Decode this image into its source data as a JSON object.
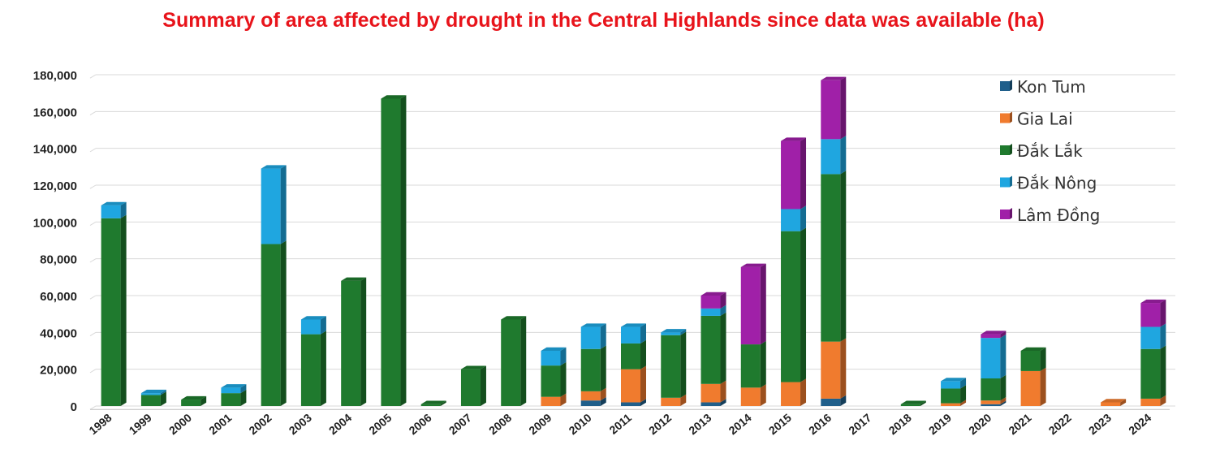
{
  "chart_data": {
    "type": "bar",
    "stacked": true,
    "title": "Summary of area affected by drought in the Central Highlands since data was available (ha)",
    "categories": [
      "1998",
      "1999",
      "2000",
      "2001",
      "2002",
      "2003",
      "2004",
      "2005",
      "2006",
      "2007",
      "2008",
      "2009",
      "2010",
      "2011",
      "2012",
      "2013",
      "2014",
      "2015",
      "2016",
      "2017",
      "2018",
      "2019",
      "2020",
      "2021",
      "2022",
      "2023",
      "2024"
    ],
    "y_tick_labels": [
      "0",
      "20,000",
      "40,000",
      "60,000",
      "80,000",
      "100,000",
      "120,000",
      "140,000",
      "160,000",
      "180,000"
    ],
    "ylim": [
      0,
      180000
    ],
    "grid": true,
    "legend_position": "top-right",
    "series": [
      {
        "name": "Kon Tum",
        "color": "#1f5f8b",
        "values": [
          0,
          0,
          0,
          0,
          0,
          0,
          0,
          0,
          0,
          0,
          0,
          0,
          3000,
          2000,
          0,
          2000,
          0,
          0,
          4000,
          0,
          0,
          0,
          1000,
          0,
          0,
          0,
          0
        ]
      },
      {
        "name": "Gia Lai",
        "color": "#f07b2e",
        "values": [
          0,
          0,
          0,
          0,
          0,
          0,
          0,
          0,
          0,
          0,
          0,
          5000,
          5000,
          18000,
          4500,
          10000,
          10000,
          13000,
          31000,
          0,
          0,
          1500,
          2000,
          19000,
          0,
          2000,
          4000
        ]
      },
      {
        "name": "Đắk Lắk",
        "color": "#1f7a2e",
        "values": [
          102000,
          6000,
          3500,
          7000,
          88000,
          39000,
          68000,
          167000,
          1000,
          20000,
          47000,
          17000,
          23000,
          14000,
          34000,
          37000,
          23500,
          82000,
          91000,
          0,
          1000,
          8000,
          12000,
          11000,
          0,
          0,
          27000
        ]
      },
      {
        "name": "Đắk Nông",
        "color": "#1fa6e0",
        "values": [
          7000,
          1000,
          0,
          3000,
          41000,
          8000,
          0,
          0,
          0,
          0,
          0,
          8000,
          12000,
          9000,
          1500,
          4000,
          0,
          12000,
          19000,
          0,
          0,
          4000,
          22000,
          0,
          0,
          0,
          12000
        ]
      },
      {
        "name": "Lâm Đồng",
        "color": "#a020a8",
        "values": [
          0,
          0,
          0,
          0,
          0,
          0,
          0,
          0,
          0,
          0,
          0,
          0,
          0,
          0,
          0,
          7000,
          42000,
          37000,
          32000,
          0,
          0,
          0,
          2000,
          0,
          0,
          0,
          13000
        ]
      }
    ]
  }
}
